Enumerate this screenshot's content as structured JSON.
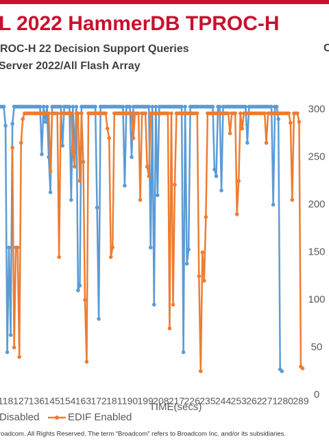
{
  "header": {
    "title": "L 2022 HammerDB TPROC-H",
    "corner": "C"
  },
  "chart_data": {
    "type": "line",
    "subtitle": [
      "ROC-H 22 Decision Support Queries",
      "Server 2022/All Flash Array"
    ],
    "x_label": "TIME(secs)",
    "x": [
      115,
      116,
      117,
      118,
      119,
      120,
      121,
      122,
      123,
      124,
      125,
      126,
      127,
      128,
      129,
      130,
      131,
      132,
      133,
      134,
      135,
      136,
      137,
      138,
      139,
      140,
      141,
      142,
      143,
      144,
      145,
      146,
      147,
      148,
      149,
      150,
      151,
      152,
      153,
      154,
      155,
      156,
      157,
      158,
      159,
      160,
      161,
      162,
      163,
      164,
      165,
      166,
      167,
      168,
      169,
      170,
      171,
      172,
      173,
      174,
      175,
      176,
      177,
      178,
      179,
      180,
      181,
      182,
      183,
      184,
      185,
      186,
      187,
      188,
      189,
      190,
      191,
      192,
      193,
      194,
      195,
      196,
      197,
      198,
      199,
      200,
      201,
      202,
      203,
      204,
      205,
      206,
      207,
      208,
      209,
      210,
      211,
      212,
      213,
      214,
      215,
      216,
      217,
      218,
      219,
      220,
      221,
      222,
      223,
      224,
      225,
      226,
      227,
      228,
      229,
      230,
      231,
      232,
      233,
      234,
      235,
      236,
      237,
      238,
      239,
      240,
      241,
      242,
      243,
      244,
      245,
      246,
      247,
      248,
      249,
      250,
      251,
      252,
      253,
      254,
      255,
      256,
      257,
      258,
      259,
      260,
      261,
      262,
      263,
      264,
      265,
      266,
      267,
      268,
      269,
      270,
      271,
      272,
      273,
      274,
      275,
      276,
      277,
      278,
      279,
      280,
      281,
      282,
      283,
      284,
      285,
      286,
      287,
      288,
      289,
      290,
      291
    ],
    "series": [
      {
        "name": "Disabled",
        "color": "#5b9bd5",
        "values": [
          303,
          303,
          303,
          283,
          45,
          155,
          63,
          285,
          303,
          303,
          303,
          303,
          303,
          303,
          303,
          303,
          303,
          303,
          303,
          303,
          303,
          303,
          303,
          303,
          253,
          303,
          287,
          303,
          250,
          213,
          303,
          303,
          303,
          303,
          303,
          303,
          262,
          303,
          303,
          303,
          303,
          205,
          303,
          255,
          303,
          110,
          115,
          303,
          303,
          303,
          303,
          303,
          303,
          303,
          303,
          303,
          197,
          80,
          303,
          303,
          303,
          303,
          303,
          303,
          303,
          303,
          303,
          303,
          303,
          303,
          303,
          303,
          220,
          303,
          303,
          303,
          250,
          303,
          303,
          303,
          303,
          303,
          303,
          303,
          303,
          303,
          303,
          155,
          303,
          95,
          303,
          210,
          303,
          303,
          303,
          303,
          303,
          303,
          303,
          303,
          303,
          303,
          303,
          303,
          303,
          303,
          45,
          303,
          138,
          153,
          303,
          303,
          303,
          303,
          303,
          303,
          303,
          303,
          303,
          303,
          303,
          303,
          303,
          303,
          237,
          230,
          303,
          303,
          215,
          303,
          303,
          303,
          303,
          303,
          303,
          303,
          303,
          303,
          303,
          303,
          303,
          303,
          303,
          265,
          303,
          303,
          303,
          303,
          303,
          303,
          303,
          303,
          303,
          303,
          303,
          303,
          303,
          303,
          200,
          303,
          303,
          290,
          27,
          25,
          null,
          null,
          null,
          null,
          null,
          null,
          null,
          null,
          null,
          null,
          null,
          null,
          null
        ]
      },
      {
        "name": "EDIF Enabled",
        "color": "#ed7d31",
        "values": [
          null,
          null,
          null,
          null,
          null,
          null,
          null,
          260,
          50,
          155,
          155,
          40,
          265,
          290,
          296,
          296,
          296,
          296,
          296,
          296,
          296,
          296,
          296,
          296,
          296,
          296,
          296,
          296,
          296,
          235,
          296,
          296,
          296,
          296,
          145,
          296,
          296,
          296,
          296,
          296,
          296,
          296,
          255,
          240,
          296,
          296,
          225,
          296,
          245,
          100,
          35,
          296,
          296,
          296,
          296,
          296,
          296,
          296,
          296,
          296,
          296,
          296,
          280,
          270,
          145,
          155,
          296,
          296,
          296,
          296,
          296,
          296,
          296,
          296,
          296,
          296,
          296,
          270,
          296,
          296,
          296,
          205,
          296,
          296,
          296,
          240,
          230,
          296,
          296,
          296,
          296,
          296,
          296,
          296,
          296,
          296,
          296,
          296,
          70,
          296,
          95,
          221,
          296,
          296,
          296,
          296,
          296,
          296,
          296,
          296,
          296,
          296,
          296,
          296,
          296,
          125,
          25,
          150,
          120,
          187,
          296,
          296,
          296,
          296,
          296,
          296,
          296,
          296,
          296,
          296,
          296,
          296,
          296,
          275,
          296,
          296,
          296,
          190,
          225,
          296,
          280,
          296,
          296,
          296,
          296,
          296,
          296,
          296,
          296,
          296,
          296,
          296,
          296,
          296,
          265,
          296,
          296,
          296,
          296,
          296,
          296,
          296,
          296,
          296,
          296,
          296,
          296,
          296,
          286,
          205,
          296,
          296,
          296,
          287,
          30,
          28,
          null
        ]
      }
    ],
    "xlim": [
      114.8,
      291.4
    ],
    "xticks": [
      118,
      127,
      136,
      145,
      154,
      163,
      172,
      181,
      190,
      199,
      208,
      217,
      226,
      235,
      244,
      253,
      262,
      271,
      280,
      289
    ],
    "ylim": [
      0,
      310
    ],
    "yticks": [
      0,
      50,
      100,
      150,
      200,
      250,
      300
    ]
  },
  "footer": "roadcom. All Rights Reserved. The term “Broadcom” refers to Broadcom Inc. and/or its subsidiaries."
}
